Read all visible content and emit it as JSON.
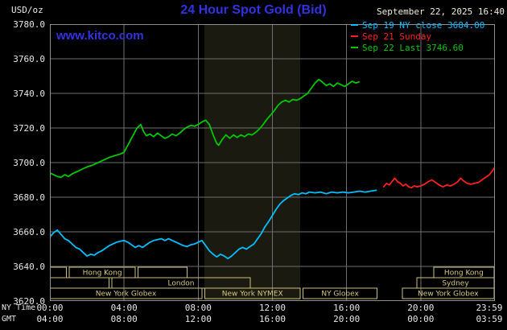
{
  "header": {
    "units_label": "USD/oz",
    "title": "24 Hour Spot Gold (Bid)",
    "datetime": "September 22, 2025 16:40",
    "watermark": "www.kitco.com"
  },
  "legend": [
    {
      "label": "Sep 19 NY close 3684.00",
      "color": "#00bfff"
    },
    {
      "label": "Sep 21 Sunday",
      "color": "#ff2020"
    },
    {
      "label": "Sep 22 Last 3746.60",
      "color": "#00c800"
    }
  ],
  "axes": {
    "y_ticks": [
      "3780.0",
      "3760.0",
      "3740.0",
      "3720.0",
      "3700.0",
      "3680.0",
      "3660.0",
      "3640.0",
      "3620.0"
    ],
    "x_ticks": [
      {
        "hour": 0,
        "ny": "00:00",
        "gmt": "04:00"
      },
      {
        "hour": 4,
        "ny": "04:00",
        "gmt": "08:00"
      },
      {
        "hour": 8,
        "ny": "08:00",
        "gmt": "12:00"
      },
      {
        "hour": 12,
        "ny": "12:00",
        "gmt": "16:00"
      },
      {
        "hour": 16,
        "ny": "16:00",
        "gmt": "20:00"
      },
      {
        "hour": 20,
        "ny": "20:00",
        "gmt": "00:00"
      },
      {
        "hour": 23.983,
        "ny": "23:59",
        "gmt": "03:59"
      }
    ],
    "row_labels": {
      "ny": "NY Time",
      "gmt": "GMT"
    }
  },
  "sessions": {
    "rows": [
      {
        "name": "asia",
        "boxes": [
          {
            "start": 0.0,
            "end": 0.9,
            "label": ""
          },
          {
            "start": 1.05,
            "end": 4.6,
            "label": "Hong Kong"
          },
          {
            "start": 4.75,
            "end": 7.4,
            "label": ""
          },
          {
            "start": 20.7,
            "end": 23.95,
            "label": "Hong Kong"
          }
        ]
      },
      {
        "name": "europe",
        "boxes": [
          {
            "start": 0.0,
            "end": 3.2,
            "label": ""
          },
          {
            "start": 3.35,
            "end": 10.8,
            "label": "London"
          },
          {
            "start": 19.8,
            "end": 23.95,
            "label": "Sydney"
          }
        ]
      },
      {
        "name": "new-york",
        "boxes": [
          {
            "start": 0.0,
            "end": 8.2,
            "label": "New York Globex"
          },
          {
            "start": 8.35,
            "end": 13.5,
            "label": "New York NYMEX"
          },
          {
            "start": 13.65,
            "end": 17.65,
            "label": "NY Globex"
          },
          {
            "start": 19.0,
            "end": 23.95,
            "label": "New York Globex"
          }
        ]
      }
    ]
  },
  "colors": {
    "background": "#000000",
    "title_blue": "#3232e0",
    "date_text": "#f2ecd6",
    "grid": "#6f6f6f",
    "plot_border": "#8f8f8f",
    "axis_text": "#e6e6e6",
    "session_box": "#cdbf7d",
    "nymex_band": "#1a1a10"
  },
  "chart_data": {
    "type": "line",
    "title": "24 Hour Spot Gold (Bid)",
    "ylabel": "USD/oz",
    "xlabel": "NY Time (hours 0-24)",
    "ylim": [
      3620,
      3780
    ],
    "xlim": [
      0,
      24
    ],
    "y_gridline_step": 20,
    "x_gridline_step_hours": 4,
    "grid": true,
    "legend_position": "top-right",
    "shaded_band_hours": [
      8.33,
      13.5
    ],
    "series": [
      {
        "id": "sep19-line",
        "name": "Sep 19 NY close 3684.00",
        "color": "#00bfff",
        "points": [
          [
            0,
            3657
          ],
          [
            0.2,
            3659.5
          ],
          [
            0.4,
            3661
          ],
          [
            0.6,
            3658.5
          ],
          [
            0.8,
            3656
          ],
          [
            1,
            3655
          ],
          [
            1.2,
            3653
          ],
          [
            1.4,
            3651
          ],
          [
            1.6,
            3650
          ],
          [
            1.8,
            3648
          ],
          [
            2,
            3646
          ],
          [
            2.2,
            3647
          ],
          [
            2.4,
            3646.5
          ],
          [
            2.6,
            3648
          ],
          [
            2.8,
            3649
          ],
          [
            3,
            3650.5
          ],
          [
            3.2,
            3652
          ],
          [
            3.4,
            3653
          ],
          [
            3.6,
            3654
          ],
          [
            3.8,
            3654.5
          ],
          [
            4,
            3655
          ],
          [
            4.2,
            3654
          ],
          [
            4.4,
            3652.5
          ],
          [
            4.6,
            3651
          ],
          [
            4.8,
            3652
          ],
          [
            5,
            3651
          ],
          [
            5.2,
            3652.5
          ],
          [
            5.4,
            3654
          ],
          [
            5.6,
            3655
          ],
          [
            5.8,
            3655.5
          ],
          [
            6,
            3656
          ],
          [
            6.2,
            3655
          ],
          [
            6.4,
            3656
          ],
          [
            6.6,
            3655
          ],
          [
            6.8,
            3654
          ],
          [
            7,
            3653
          ],
          [
            7.2,
            3652
          ],
          [
            7.4,
            3651.5
          ],
          [
            7.6,
            3652.5
          ],
          [
            7.8,
            3653
          ],
          [
            8,
            3654
          ],
          [
            8.2,
            3655
          ],
          [
            8.4,
            3652
          ],
          [
            8.6,
            3649
          ],
          [
            8.8,
            3647
          ],
          [
            9,
            3645.5
          ],
          [
            9.2,
            3647
          ],
          [
            9.4,
            3646
          ],
          [
            9.6,
            3644.5
          ],
          [
            9.8,
            3646
          ],
          [
            10,
            3648
          ],
          [
            10.2,
            3650
          ],
          [
            10.4,
            3651
          ],
          [
            10.6,
            3650
          ],
          [
            10.8,
            3651.5
          ],
          [
            11,
            3653
          ],
          [
            11.2,
            3656
          ],
          [
            11.4,
            3659
          ],
          [
            11.6,
            3663
          ],
          [
            11.8,
            3666
          ],
          [
            12,
            3669.5
          ],
          [
            12.2,
            3673
          ],
          [
            12.4,
            3676
          ],
          [
            12.6,
            3678
          ],
          [
            12.8,
            3679.5
          ],
          [
            13,
            3681
          ],
          [
            13.2,
            3682
          ],
          [
            13.4,
            3681.5
          ],
          [
            13.6,
            3682.5
          ],
          [
            13.8,
            3682
          ],
          [
            14,
            3683
          ],
          [
            14.3,
            3682.5
          ],
          [
            14.6,
            3683
          ],
          [
            14.9,
            3682
          ],
          [
            15.2,
            3683
          ],
          [
            15.5,
            3682.5
          ],
          [
            15.8,
            3683
          ],
          [
            16.1,
            3682.5
          ],
          [
            16.4,
            3683
          ],
          [
            16.7,
            3683.5
          ],
          [
            17,
            3683
          ],
          [
            17.3,
            3683.5
          ],
          [
            17.6,
            3684
          ]
        ]
      },
      {
        "id": "sep21-line",
        "name": "Sep 21 Sunday",
        "color": "#ff2020",
        "points": [
          [
            18,
            3686
          ],
          [
            18.15,
            3688
          ],
          [
            18.3,
            3687
          ],
          [
            18.45,
            3689
          ],
          [
            18.6,
            3691
          ],
          [
            18.75,
            3689
          ],
          [
            18.9,
            3688
          ],
          [
            19.05,
            3686.5
          ],
          [
            19.2,
            3687.5
          ],
          [
            19.35,
            3686
          ],
          [
            19.5,
            3685.5
          ],
          [
            19.65,
            3686.5
          ],
          [
            19.8,
            3686
          ],
          [
            20,
            3686.5
          ],
          [
            20.2,
            3687.5
          ],
          [
            20.4,
            3689
          ],
          [
            20.6,
            3690
          ],
          [
            20.8,
            3688.5
          ],
          [
            21,
            3687
          ],
          [
            21.2,
            3686
          ],
          [
            21.4,
            3687
          ],
          [
            21.6,
            3686.5
          ],
          [
            21.8,
            3687.5
          ],
          [
            22,
            3689
          ],
          [
            22.15,
            3691
          ],
          [
            22.3,
            3689.5
          ],
          [
            22.5,
            3688
          ],
          [
            22.7,
            3687.5
          ],
          [
            22.9,
            3688
          ],
          [
            23.1,
            3688.5
          ],
          [
            23.3,
            3690
          ],
          [
            23.5,
            3691.5
          ],
          [
            23.7,
            3693
          ],
          [
            23.85,
            3695
          ],
          [
            23.98,
            3697
          ]
        ]
      },
      {
        "id": "sep22-line",
        "name": "Sep 22 Last 3746.60",
        "color": "#00c800",
        "points": [
          [
            0,
            3694
          ],
          [
            0.2,
            3693
          ],
          [
            0.4,
            3692
          ],
          [
            0.6,
            3691.5
          ],
          [
            0.8,
            3693
          ],
          [
            1,
            3692
          ],
          [
            1.2,
            3693.5
          ],
          [
            1.5,
            3695
          ],
          [
            1.8,
            3696.5
          ],
          [
            2,
            3697.5
          ],
          [
            2.3,
            3698.5
          ],
          [
            2.6,
            3700
          ],
          [
            2.9,
            3701.5
          ],
          [
            3.2,
            3703
          ],
          [
            3.5,
            3704
          ],
          [
            3.8,
            3705
          ],
          [
            4,
            3706
          ],
          [
            4.2,
            3710
          ],
          [
            4.5,
            3716
          ],
          [
            4.7,
            3720
          ],
          [
            4.9,
            3722
          ],
          [
            5.05,
            3718
          ],
          [
            5.2,
            3715.5
          ],
          [
            5.4,
            3716.5
          ],
          [
            5.6,
            3715
          ],
          [
            5.8,
            3717
          ],
          [
            6,
            3715.5
          ],
          [
            6.2,
            3714
          ],
          [
            6.4,
            3715
          ],
          [
            6.6,
            3716.5
          ],
          [
            6.8,
            3715.5
          ],
          [
            7,
            3717
          ],
          [
            7.2,
            3719
          ],
          [
            7.4,
            3720.5
          ],
          [
            7.6,
            3721.5
          ],
          [
            7.8,
            3721
          ],
          [
            8,
            3722
          ],
          [
            8.2,
            3723.5
          ],
          [
            8.4,
            3724.5
          ],
          [
            8.6,
            3722
          ],
          [
            8.8,
            3716
          ],
          [
            9,
            3711
          ],
          [
            9.1,
            3710
          ],
          [
            9.3,
            3713.5
          ],
          [
            9.5,
            3716
          ],
          [
            9.7,
            3714
          ],
          [
            9.9,
            3716
          ],
          [
            10.1,
            3714.5
          ],
          [
            10.3,
            3716
          ],
          [
            10.5,
            3715
          ],
          [
            10.7,
            3716.5
          ],
          [
            10.9,
            3716
          ],
          [
            11.1,
            3717.5
          ],
          [
            11.3,
            3719.5
          ],
          [
            11.5,
            3722
          ],
          [
            11.7,
            3725
          ],
          [
            11.9,
            3727.5
          ],
          [
            12.1,
            3730
          ],
          [
            12.3,
            3733
          ],
          [
            12.5,
            3735
          ],
          [
            12.7,
            3736
          ],
          [
            12.9,
            3735
          ],
          [
            13.1,
            3736.5
          ],
          [
            13.3,
            3736
          ],
          [
            13.5,
            3737
          ],
          [
            13.7,
            3738.5
          ],
          [
            13.9,
            3740
          ],
          [
            14.1,
            3743
          ],
          [
            14.3,
            3746
          ],
          [
            14.5,
            3748
          ],
          [
            14.7,
            3746.5
          ],
          [
            14.9,
            3744.5
          ],
          [
            15.1,
            3745.5
          ],
          [
            15.3,
            3744
          ],
          [
            15.5,
            3746
          ],
          [
            15.7,
            3745
          ],
          [
            15.9,
            3744
          ],
          [
            16.1,
            3745.5
          ],
          [
            16.3,
            3747
          ],
          [
            16.5,
            3746
          ],
          [
            16.67,
            3746.6
          ]
        ]
      }
    ]
  }
}
